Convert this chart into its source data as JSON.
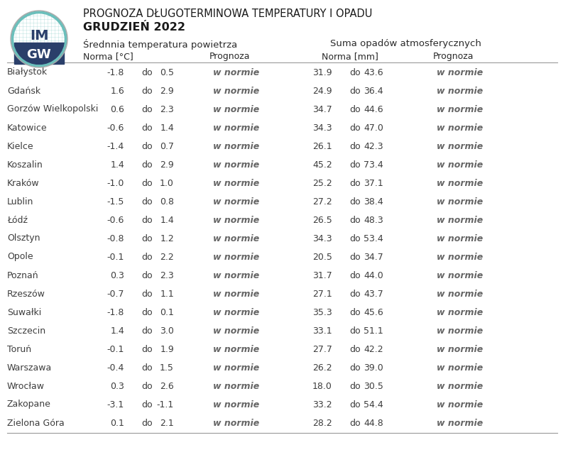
{
  "title_line1": "PROGNOZA DŁUGOTERMINOWA TEMPERATURY I OPADU",
  "title_line2": "GRUDZIEŃ 2022",
  "header1": "Średnnia temperatura powietrza",
  "header2": "Suma opadów atmosferycznych",
  "subheader_norma_temp": "Norma [°C]",
  "subheader_prognoza": "Prognoza",
  "subheader_norma_prec": "Norma [mm]",
  "subheader_prognoza2": "Prognoza",
  "cities": [
    "Białystok",
    "Gdańsk",
    "Gorzów Wielkopolski",
    "Katowice",
    "Kielce",
    "Koszalin",
    "Kraków",
    "Lublin",
    "Łódź",
    "Olsztyn",
    "Opole",
    "Poznań",
    "Rzeszów",
    "Suwałki",
    "Szczecin",
    "Toruń",
    "Warszawa",
    "Wrocław",
    "Zakopane",
    "Zielona Góra"
  ],
  "temp_from": [
    -1.8,
    1.6,
    0.6,
    -0.6,
    -1.4,
    1.4,
    -1.0,
    -1.5,
    -0.6,
    -0.8,
    -0.1,
    0.3,
    -0.7,
    -1.8,
    1.4,
    -0.1,
    -0.4,
    0.3,
    -3.1,
    0.1
  ],
  "temp_to": [
    0.5,
    2.9,
    2.3,
    1.4,
    0.7,
    2.9,
    1.0,
    0.8,
    1.4,
    1.2,
    2.2,
    2.3,
    1.1,
    0.1,
    3.0,
    1.9,
    1.5,
    2.6,
    -1.1,
    2.1
  ],
  "temp_prognoza": [
    "w normie",
    "w normie",
    "w normie",
    "w normie",
    "w normie",
    "w normie",
    "w normie",
    "w normie",
    "w normie",
    "w normie",
    "w normie",
    "w normie",
    "w normie",
    "w normie",
    "w normie",
    "w normie",
    "w normie",
    "w normie",
    "w normie",
    "w normie"
  ],
  "prec_from": [
    31.9,
    24.9,
    34.7,
    34.3,
    26.1,
    45.2,
    25.2,
    27.2,
    26.5,
    34.3,
    20.5,
    31.7,
    27.1,
    35.3,
    33.1,
    27.7,
    26.2,
    18.0,
    33.2,
    28.2
  ],
  "prec_to": [
    43.6,
    36.4,
    44.6,
    47.0,
    42.3,
    73.4,
    37.1,
    38.4,
    48.3,
    53.4,
    34.7,
    44.0,
    43.7,
    45.6,
    51.1,
    42.2,
    39.0,
    30.5,
    54.4,
    44.8
  ],
  "prec_prognoza": [
    "w normie",
    "w normie",
    "w normie",
    "w normie",
    "w normie",
    "w normie",
    "w normie",
    "w normie",
    "w normie",
    "w normie",
    "w normie",
    "w normie",
    "w normie",
    "w normie",
    "w normie",
    "w normie",
    "w normie",
    "w normie",
    "w normie",
    "w normie"
  ],
  "bg_color": "#ffffff",
  "text_color": "#3d3d3d",
  "prognoza_color": "#666666",
  "header_color": "#2a2a2a",
  "line_color": "#999999",
  "title_color": "#1a1a1a",
  "logo_teal": "#6bbfbb",
  "logo_dark": "#2a3f6a",
  "logo_mid": "#4a8a8a"
}
